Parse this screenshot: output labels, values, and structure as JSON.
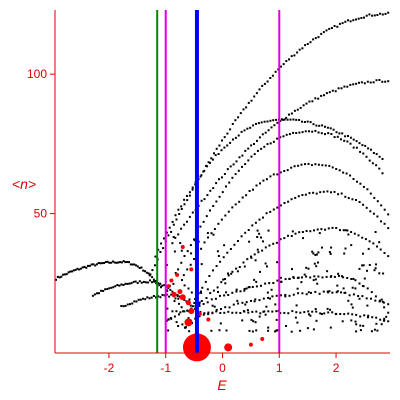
{
  "chart_data": {
    "type": "scatter",
    "xlabel": "E",
    "ylabel": "<n>",
    "xlim": [
      -2.95,
      2.95
    ],
    "ylim": [
      0,
      123
    ],
    "x_ticks": [
      -2,
      -1,
      0,
      1,
      2
    ],
    "x_tick_labels": [
      "-2",
      "-1",
      "0",
      "1",
      "2"
    ],
    "y_ticks": [
      50,
      100
    ],
    "y_tick_labels": [
      "50",
      "100"
    ],
    "grid": false,
    "colors": {
      "axis": "#e00000",
      "points": "#000000",
      "highlight_points": "#ff0000",
      "line_blue": "#0000ff",
      "line_green": "#008800",
      "line_magenta": "#dd00dd"
    },
    "vertical_lines": [
      {
        "x": -1.15,
        "color": "#008800"
      },
      {
        "x": -1.0,
        "color": "#dd00dd"
      },
      {
        "x": -0.45,
        "color": "#0000ff",
        "thick": true
      },
      {
        "x": 1.0,
        "color": "#dd00dd"
      }
    ],
    "highlight_points": [
      {
        "x": -0.45,
        "y": 2,
        "size": 14
      },
      {
        "x": 0.1,
        "y": 2,
        "size": 4
      },
      {
        "x": -0.6,
        "y": 11,
        "size": 4
      },
      {
        "x": -0.55,
        "y": 15,
        "size": 3
      },
      {
        "x": -0.7,
        "y": 20,
        "size": 3
      },
      {
        "x": -0.75,
        "y": 22,
        "size": 2.5
      },
      {
        "x": -0.85,
        "y": 21,
        "size": 2.5
      },
      {
        "x": -0.6,
        "y": 18,
        "size": 2.5
      },
      {
        "x": -0.95,
        "y": 24,
        "size": 2
      },
      {
        "x": -0.55,
        "y": 30,
        "size": 2
      },
      {
        "x": -0.7,
        "y": 38,
        "size": 2
      },
      {
        "x": -0.8,
        "y": 28,
        "size": 2
      },
      {
        "x": -0.9,
        "y": 26,
        "size": 2
      },
      {
        "x": -0.4,
        "y": 14,
        "size": 2
      },
      {
        "x": -0.25,
        "y": 12,
        "size": 2
      },
      {
        "x": 0.5,
        "y": 3,
        "size": 2
      },
      {
        "x": 0.7,
        "y": 5,
        "size": 2
      },
      {
        "x": -0.35,
        "y": 3,
        "size": 2
      }
    ],
    "branches": [
      {
        "x0": -2.95,
        "x1": -1.1,
        "peak_x": -1.8,
        "peak_y": 33,
        "end_y": 24,
        "start_y": 27,
        "count": 60
      },
      {
        "x0": -2.3,
        "x1": -0.9,
        "peak_x": -1.3,
        "peak_y": 26,
        "end_y": 22,
        "start_y": 21,
        "count": 40
      },
      {
        "x0": -1.8,
        "x1": -0.5,
        "peak_x": -0.9,
        "peak_y": 21,
        "end_y": 16,
        "start_y": 17,
        "count": 35
      },
      {
        "x0": -1.3,
        "x1": 2.9,
        "peak_x": 2.9,
        "peak_y": 122,
        "end_y": 122,
        "start_y": 28,
        "count": 90
      },
      {
        "x0": -1.2,
        "x1": 2.8,
        "peak_x": 1.0,
        "peak_y": 84,
        "end_y": 70,
        "start_y": 35,
        "count": 80
      },
      {
        "x0": -0.9,
        "x1": 2.9,
        "peak_x": 2.9,
        "peak_y": 98,
        "end_y": 98,
        "start_y": 40,
        "count": 75
      },
      {
        "x0": -0.8,
        "x1": 2.8,
        "peak_x": 1.5,
        "peak_y": 80,
        "end_y": 65,
        "start_y": 30,
        "count": 65
      },
      {
        "x0": -0.7,
        "x1": 2.9,
        "peak_x": 1.6,
        "peak_y": 68,
        "end_y": 50,
        "start_y": 28,
        "count": 60
      },
      {
        "x0": -0.5,
        "x1": 2.9,
        "peak_x": 1.8,
        "peak_y": 58,
        "end_y": 45,
        "start_y": 20,
        "count": 55
      },
      {
        "x0": -0.3,
        "x1": 2.9,
        "peak_x": 1.9,
        "peak_y": 45,
        "end_y": 35,
        "start_y": 20,
        "count": 50
      },
      {
        "x0": -0.9,
        "x1": 2.9,
        "peak_x": 1.5,
        "peak_y": 15,
        "end_y": 12,
        "start_y": 15,
        "count": 55
      },
      {
        "x0": -1.0,
        "x1": 2.9,
        "peak_x": 2.0,
        "peak_y": 28,
        "end_y": 15,
        "start_y": 12,
        "count": 55
      },
      {
        "x0": -0.8,
        "x1": 2.9,
        "peak_x": 1.8,
        "peak_y": 22,
        "end_y": 18,
        "start_y": 10,
        "count": 50
      }
    ],
    "scatter_seed": 7,
    "scatter_region": {
      "x0": -1.0,
      "x1": 2.9,
      "y0": 8,
      "y1": 45,
      "count": 220
    }
  }
}
